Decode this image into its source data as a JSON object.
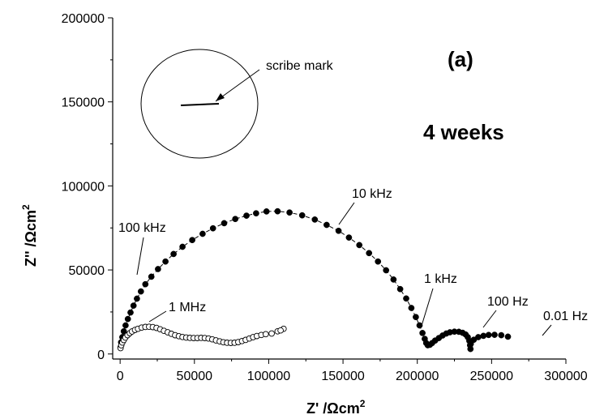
{
  "chart_data": {
    "type": "scatter",
    "xlabel": "Z' /Ωcm",
    "xlabel_sup": "2",
    "ylabel": "Z'' /Ωcm",
    "ylabel_sup": "2",
    "xlim": [
      -5000,
      300000
    ],
    "ylim": [
      -3000,
      200000
    ],
    "x_ticks": [
      0,
      50000,
      100000,
      150000,
      200000,
      250000,
      300000
    ],
    "x_tick_labels": [
      "0",
      "50000",
      "100000",
      "150000",
      "200000",
      "250000",
      "300000"
    ],
    "y_ticks": [
      0,
      50000,
      100000,
      150000,
      200000
    ],
    "y_tick_labels": [
      "0",
      "50000",
      "100000",
      "150000",
      "200000"
    ],
    "grid": false,
    "panel_label": "(a)",
    "duration_label": "4 weeks",
    "inset_label": "scribe mark",
    "frequency_labels": [
      "100 kHz",
      "10 kHz",
      "1 kHz",
      "100 Hz",
      "0.01 Hz",
      "1 MHz"
    ],
    "series": [
      {
        "marker": "filled-circle",
        "line": "dashed",
        "color": "#000000",
        "points": [
          [
            300,
            4000
          ],
          [
            700,
            7000
          ],
          [
            1500,
            10000
          ],
          [
            2500,
            13500
          ],
          [
            3700,
            17000
          ],
          [
            5200,
            20800
          ],
          [
            7000,
            24700
          ],
          [
            9000,
            28800
          ],
          [
            11300,
            32900
          ],
          [
            14000,
            37200
          ],
          [
            17000,
            41500
          ],
          [
            21000,
            46000
          ],
          [
            25500,
            50500
          ],
          [
            30500,
            55000
          ],
          [
            36000,
            59500
          ],
          [
            42000,
            63800
          ],
          [
            48500,
            67800
          ],
          [
            55500,
            71500
          ],
          [
            62500,
            74800
          ],
          [
            70000,
            77800
          ],
          [
            77500,
            80300
          ],
          [
            85000,
            82300
          ],
          [
            91500,
            83700
          ],
          [
            98500,
            84800
          ],
          [
            106000,
            84900
          ],
          [
            114000,
            84200
          ],
          [
            122500,
            82500
          ],
          [
            131000,
            80000
          ],
          [
            139000,
            76800
          ],
          [
            147000,
            73300
          ],
          [
            154000,
            69300
          ],
          [
            161000,
            64800
          ],
          [
            167500,
            60000
          ],
          [
            173500,
            55000
          ],
          [
            179000,
            49800
          ],
          [
            184000,
            44300
          ],
          [
            188500,
            38600
          ],
          [
            192500,
            33000
          ],
          [
            196000,
            27400
          ],
          [
            199000,
            22000
          ],
          [
            201500,
            17000
          ],
          [
            203500,
            12500
          ],
          [
            205000,
            9000
          ],
          [
            206000,
            6500
          ],
          [
            207000,
            5200
          ],
          [
            208500,
            5500
          ],
          [
            210000,
            6500
          ],
          [
            212000,
            8000
          ],
          [
            214500,
            9500
          ],
          [
            217000,
            11000
          ],
          [
            219500,
            12200
          ],
          [
            222000,
            12900
          ],
          [
            225000,
            13300
          ],
          [
            228000,
            13200
          ],
          [
            230500,
            12600
          ],
          [
            232500,
            11600
          ],
          [
            234000,
            10000
          ],
          [
            235000,
            7800
          ],
          [
            235500,
            5200
          ],
          [
            235800,
            3000
          ],
          [
            236000,
            6000
          ],
          [
            238000,
            8500
          ],
          [
            241000,
            10000
          ],
          [
            244500,
            10800
          ],
          [
            248000,
            11300
          ],
          [
            252000,
            11400
          ],
          [
            256500,
            11200
          ],
          [
            261000,
            10300
          ]
        ]
      },
      {
        "marker": "open-circle",
        "line": "none",
        "color": "#000000",
        "points": [
          [
            300,
            3500
          ],
          [
            800,
            5200
          ],
          [
            1500,
            6800
          ],
          [
            2500,
            8300
          ],
          [
            3500,
            9800
          ],
          [
            5000,
            11200
          ],
          [
            6500,
            12400
          ],
          [
            8000,
            13400
          ],
          [
            10000,
            14300
          ],
          [
            12000,
            15000
          ],
          [
            14500,
            15700
          ],
          [
            17000,
            16100
          ],
          [
            19500,
            16200
          ],
          [
            22000,
            16000
          ],
          [
            24500,
            15500
          ],
          [
            27000,
            14700
          ],
          [
            29500,
            13800
          ],
          [
            32000,
            12900
          ],
          [
            34500,
            12000
          ],
          [
            37000,
            11200
          ],
          [
            39500,
            10600
          ],
          [
            42000,
            10100
          ],
          [
            44500,
            9800
          ],
          [
            47000,
            9600
          ],
          [
            49500,
            9500
          ],
          [
            52000,
            9500
          ],
          [
            54500,
            9600
          ],
          [
            57000,
            9500
          ],
          [
            59500,
            9200
          ],
          [
            62000,
            8700
          ],
          [
            64500,
            8100
          ],
          [
            67000,
            7500
          ],
          [
            69500,
            7000
          ],
          [
            72000,
            6700
          ],
          [
            74500,
            6600
          ],
          [
            77000,
            6700
          ],
          [
            79500,
            7100
          ],
          [
            82000,
            7700
          ],
          [
            84500,
            8400
          ],
          [
            87000,
            9200
          ],
          [
            89500,
            10000
          ],
          [
            92000,
            10700
          ],
          [
            95000,
            11300
          ],
          [
            98000,
            11800
          ],
          [
            102000,
            12200
          ],
          [
            106000,
            13500
          ],
          [
            110000,
            15000
          ],
          [
            108000,
            14000
          ]
        ]
      }
    ]
  }
}
